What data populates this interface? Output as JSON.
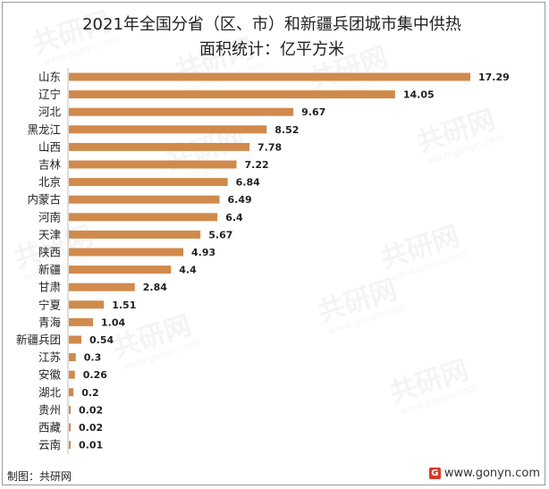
{
  "title_lines": [
    "2021年全国分省（区、市）和新疆兵团城市集中供热",
    "面积统计：亿平方米"
  ],
  "footer": {
    "source": "制图：共研网",
    "website": "www.gonyn.com"
  },
  "watermark": {
    "brand": "共研网",
    "domain": "www.gonyn.com"
  },
  "colors": {
    "bar": "#d08a4c",
    "text": "#222222",
    "axis": "#bbbbbb"
  },
  "chart_data": {
    "type": "bar",
    "orientation": "horizontal",
    "title": "2021年全国分省（区、市）和新疆兵团城市集中供热面积统计：亿平方米",
    "categories": [
      "山东",
      "辽宁",
      "河北",
      "黑龙江",
      "山西",
      "吉林",
      "北京",
      "内蒙古",
      "河南",
      "天津",
      "陕西",
      "新疆",
      "甘肃",
      "宁夏",
      "青海",
      "新疆兵团",
      "江苏",
      "安徽",
      "湖北",
      "贵州",
      "西藏",
      "云南"
    ],
    "values": [
      17.29,
      14.05,
      9.67,
      8.52,
      7.78,
      7.22,
      6.84,
      6.49,
      6.4,
      5.67,
      4.93,
      4.4,
      2.84,
      1.51,
      1.04,
      0.54,
      0.3,
      0.26,
      0.2,
      0.02,
      0.02,
      0.01
    ],
    "value_labels": [
      "17.29",
      "14.05",
      "9.67",
      "8.52",
      "7.78",
      "7.22",
      "6.84",
      "6.49",
      "6.4",
      "5.67",
      "4.93",
      "4.4",
      "2.84",
      "1.51",
      "1.04",
      "0.54",
      "0.3",
      "0.26",
      "0.2",
      "0.02",
      "0.02",
      "0.01"
    ],
    "xlabel": "",
    "ylabel": "",
    "xlim": [
      0,
      17.29
    ],
    "grid": false,
    "legend": "none"
  }
}
